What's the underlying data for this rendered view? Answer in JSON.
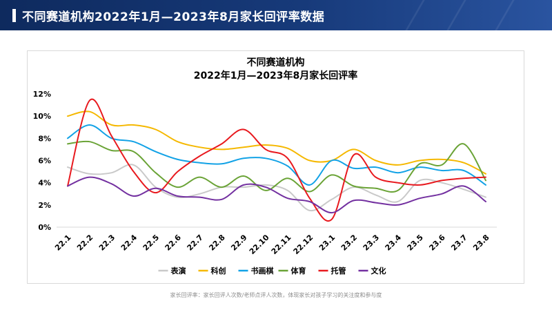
{
  "header": {
    "title": "不同赛道机构2022年1月—2023年8月家长回评率数据"
  },
  "chart_data": {
    "type": "line",
    "title_line1": "不同赛道机构",
    "title_line2": "2022年1月—2023年8月家长回评率",
    "categories": [
      "22.1",
      "22.2",
      "22.3",
      "22.4",
      "22.5",
      "22.6",
      "22.7",
      "22.8",
      "22.9",
      "22.10",
      "22.11",
      "22.12",
      "23.1",
      "23.2",
      "23.3",
      "23.4",
      "23.5",
      "23.6",
      "23.7",
      "23.8"
    ],
    "y_ticks": [
      "0%",
      "2%",
      "4%",
      "6%",
      "8%",
      "10%",
      "12%"
    ],
    "ylim": [
      0,
      12
    ],
    "series": [
      {
        "name": "表演",
        "color": "#c9c9c9",
        "values": [
          5.4,
          4.8,
          4.9,
          5.6,
          3.6,
          2.7,
          3.0,
          3.6,
          3.6,
          3.8,
          3.3,
          1.5,
          2.5,
          3.6,
          2.9,
          2.3,
          4.2,
          4.0,
          3.4,
          2.7
        ]
      },
      {
        "name": "科创",
        "color": "#f5b800",
        "values": [
          10.0,
          10.4,
          9.2,
          9.2,
          8.8,
          7.7,
          7.2,
          7.0,
          7.2,
          7.4,
          7.1,
          6.0,
          6.0,
          7.0,
          6.0,
          5.6,
          6.0,
          6.1,
          5.8,
          4.8
        ]
      },
      {
        "name": "书画棋",
        "color": "#12a2e6",
        "values": [
          8.0,
          9.2,
          8.0,
          7.7,
          6.8,
          6.1,
          5.8,
          5.7,
          6.2,
          6.2,
          5.5,
          3.8,
          6.0,
          5.3,
          5.4,
          4.9,
          5.4,
          5.1,
          5.1,
          3.8
        ]
      },
      {
        "name": "体育",
        "color": "#6aa336",
        "values": [
          7.5,
          7.7,
          6.9,
          6.8,
          4.9,
          3.6,
          4.5,
          3.6,
          4.6,
          3.3,
          4.4,
          3.2,
          4.7,
          3.7,
          3.5,
          3.3,
          5.7,
          5.6,
          7.5,
          4.2
        ]
      },
      {
        "name": "托管",
        "color": "#e8191e",
        "values": [
          3.7,
          11.4,
          8.2,
          5.0,
          3.1,
          5.0,
          6.4,
          7.5,
          8.8,
          7.0,
          6.2,
          2.6,
          0.7,
          6.5,
          4.5,
          4.0,
          3.8,
          4.2,
          4.4,
          4.5
        ]
      },
      {
        "name": "文化",
        "color": "#7330a0",
        "values": [
          3.7,
          4.5,
          3.9,
          2.8,
          3.5,
          2.8,
          2.7,
          2.5,
          3.8,
          3.6,
          2.6,
          2.3,
          1.3,
          2.4,
          2.2,
          2.0,
          2.6,
          3.0,
          3.7,
          2.3
        ]
      }
    ]
  },
  "footnote": "家长回评率：家长回评人次数/老师点评人次数，体现家长对孩子学习的关注度和参与度"
}
